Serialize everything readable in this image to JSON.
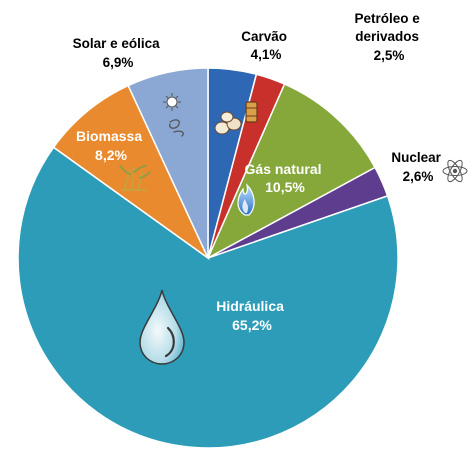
{
  "chart_data": {
    "type": "pie",
    "title": "",
    "slices": [
      {
        "label": "Carvão",
        "value": 4.1,
        "value_label": "4,1%",
        "color": "#2E67B3",
        "icon": "coal-icon"
      },
      {
        "label": "Petróleo e derivados",
        "value": 2.5,
        "value_label": "2,5%",
        "color": "#C8302C",
        "icon": "oil-barrel-icon"
      },
      {
        "label": "Gás natural",
        "value": 10.5,
        "value_label": "10,5%",
        "color": "#86A83B",
        "icon": "gas-flame-icon"
      },
      {
        "label": "Nuclear",
        "value": 2.6,
        "value_label": "2,6%",
        "color": "#5E3C8E",
        "icon": "atom-icon"
      },
      {
        "label": "Hidráulica",
        "value": 65.2,
        "value_label": "65,2%",
        "color": "#2D9CB8",
        "icon": "water-drop-icon"
      },
      {
        "label": "Biomassa",
        "value": 8.2,
        "value_label": "8,2%",
        "color": "#E98A2E",
        "icon": "sugarcane-icon"
      },
      {
        "label": "Solar e eólica",
        "value": 6.9,
        "value_label": "6,9%",
        "color": "#8BA7D3",
        "icon": "sun-wind-icon"
      }
    ],
    "label_lines": {
      "Carvão": [
        "Carvão",
        "4,1%"
      ],
      "Petróleo e derivados": [
        "Petróleo e",
        "derivados",
        "2,5%"
      ],
      "Gás natural": [
        "Gás natural",
        "10,5%"
      ],
      "Nuclear": [
        "Nuclear",
        "2,6%"
      ],
      "Hidráulica": [
        "Hidráulica",
        "65,2%"
      ],
      "Biomassa": [
        "Biomassa",
        "8,2%"
      ],
      "Solar e eólica": [
        "Solar e eólica",
        "6,9%"
      ]
    }
  }
}
